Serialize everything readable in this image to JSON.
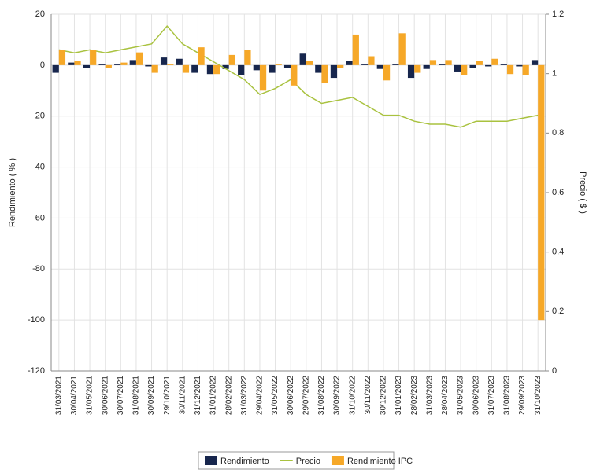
{
  "chart_data": {
    "type": "bar-line",
    "ylabel": "Rendimiento ( % )",
    "y2label": "Precio ( $ )",
    "categories": [
      "31/03/2021",
      "30/04/2021",
      "31/05/2021",
      "30/06/2021",
      "30/07/2021",
      "31/08/2021",
      "30/09/2021",
      "29/10/2021",
      "30/11/2021",
      "31/12/2021",
      "31/01/2022",
      "28/02/2022",
      "31/03/2022",
      "29/04/2022",
      "31/05/2022",
      "30/06/2022",
      "29/07/2022",
      "31/08/2022",
      "30/09/2022",
      "31/10/2022",
      "30/11/2022",
      "30/12/2022",
      "31/01/2023",
      "28/02/2023",
      "31/03/2023",
      "28/04/2023",
      "31/05/2023",
      "30/06/2023",
      "31/07/2023",
      "31/08/2023",
      "29/09/2023",
      "31/10/2023"
    ],
    "series": [
      {
        "name": "Rendimiento",
        "type": "bar",
        "color": "#17264d",
        "values": [
          -3,
          1,
          -1,
          0.5,
          0.5,
          2,
          -0.5,
          3,
          2.5,
          -3,
          -3.5,
          -1.5,
          -4,
          -2,
          -3,
          -1,
          4.5,
          -3,
          -5,
          1.5,
          0.5,
          -1.5,
          0.5,
          -5,
          -1.5,
          0.5,
          -2.5,
          -1,
          -0.5,
          0.5,
          -0.5,
          2
        ]
      },
      {
        "name": "Precio",
        "type": "line",
        "axis": "y2",
        "color": "#a9c23f",
        "values": [
          1.08,
          1.07,
          1.08,
          1.07,
          1.08,
          1.09,
          1.1,
          1.16,
          1.1,
          1.07,
          1.04,
          1.01,
          0.98,
          0.93,
          0.95,
          0.98,
          0.93,
          0.9,
          0.91,
          0.92,
          0.89,
          0.86,
          0.86,
          0.84,
          0.83,
          0.83,
          0.82,
          0.84,
          0.84,
          0.84,
          0.85,
          0.86
        ]
      },
      {
        "name": "Rendimiento IPC",
        "type": "bar",
        "color": "#f6a828",
        "values": [
          6,
          1.5,
          6,
          -1,
          1,
          5,
          -3,
          0.5,
          -3,
          7,
          -3.5,
          4,
          6,
          -10,
          0.5,
          -8,
          1.5,
          -7,
          -1,
          12,
          3.5,
          -6,
          12.5,
          -3,
          2,
          2,
          -4,
          1.5,
          2.5,
          -3.5,
          -4,
          -100
        ]
      }
    ],
    "ylim": [
      -120,
      20
    ],
    "yticks": [
      -120,
      -100,
      -80,
      -60,
      -40,
      -20,
      0,
      20
    ],
    "y2lim": [
      0,
      1.2
    ],
    "y2ticks": [
      0,
      0.2,
      0.4,
      0.6,
      0.8,
      1,
      1.2
    ],
    "grid": true,
    "legend": "bottom"
  }
}
